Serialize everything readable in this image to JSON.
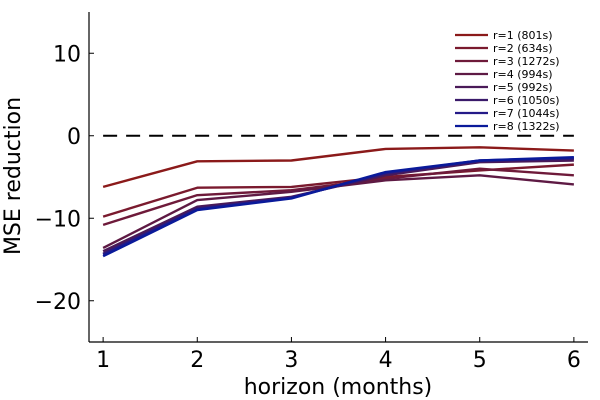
{
  "chart_data": {
    "type": "line",
    "xlabel": "horizon (months)",
    "ylabel": "MSE reduction",
    "xlim": [
      0.85,
      6.15
    ],
    "ylim": [
      -25,
      15
    ],
    "xticks": [
      1,
      2,
      3,
      4,
      5,
      6
    ],
    "yticks": [
      10,
      0,
      -10,
      -20
    ],
    "ytick_labels": [
      "10",
      "0",
      "−10",
      "−20"
    ],
    "reference_line": {
      "y": 0,
      "style": "dashed",
      "color": "#000000"
    },
    "grid": false,
    "legend_position": "top-right",
    "x": [
      1,
      2,
      3,
      4,
      5,
      6
    ],
    "series": [
      {
        "name": "r=1 (801s)",
        "color": "#8b1a1a",
        "values": [
          -6.2,
          -3.1,
          -3.0,
          -1.6,
          -1.4,
          -1.8
        ]
      },
      {
        "name": "r=2 (634s)",
        "color": "#7a1a2e",
        "values": [
          -9.8,
          -6.3,
          -6.2,
          -5.0,
          -4.2,
          -3.5
        ]
      },
      {
        "name": "r=3 (1272s)",
        "color": "#6e1a3a",
        "values": [
          -10.8,
          -7.2,
          -6.6,
          -5.2,
          -4.0,
          -4.8
        ]
      },
      {
        "name": "r=4 (994s)",
        "color": "#5e1a44",
        "values": [
          -13.6,
          -7.8,
          -6.8,
          -5.4,
          -4.8,
          -5.9
        ]
      },
      {
        "name": "r=5 (992s)",
        "color": "#4a1a58",
        "values": [
          -14.0,
          -8.6,
          -7.4,
          -4.8,
          -3.2,
          -3.0
        ]
      },
      {
        "name": "r=6 (1050s)",
        "color": "#3a1a6a",
        "values": [
          -14.3,
          -8.8,
          -7.5,
          -4.6,
          -3.1,
          -2.8
        ]
      },
      {
        "name": "r=7 (1044s)",
        "color": "#241a88",
        "values": [
          -14.4,
          -8.9,
          -7.5,
          -4.5,
          -3.0,
          -2.7
        ]
      },
      {
        "name": "r=8 (1322s)",
        "color": "#0a1a9a",
        "values": [
          -14.6,
          -9.0,
          -7.6,
          -4.4,
          -3.0,
          -2.6
        ]
      }
    ]
  }
}
